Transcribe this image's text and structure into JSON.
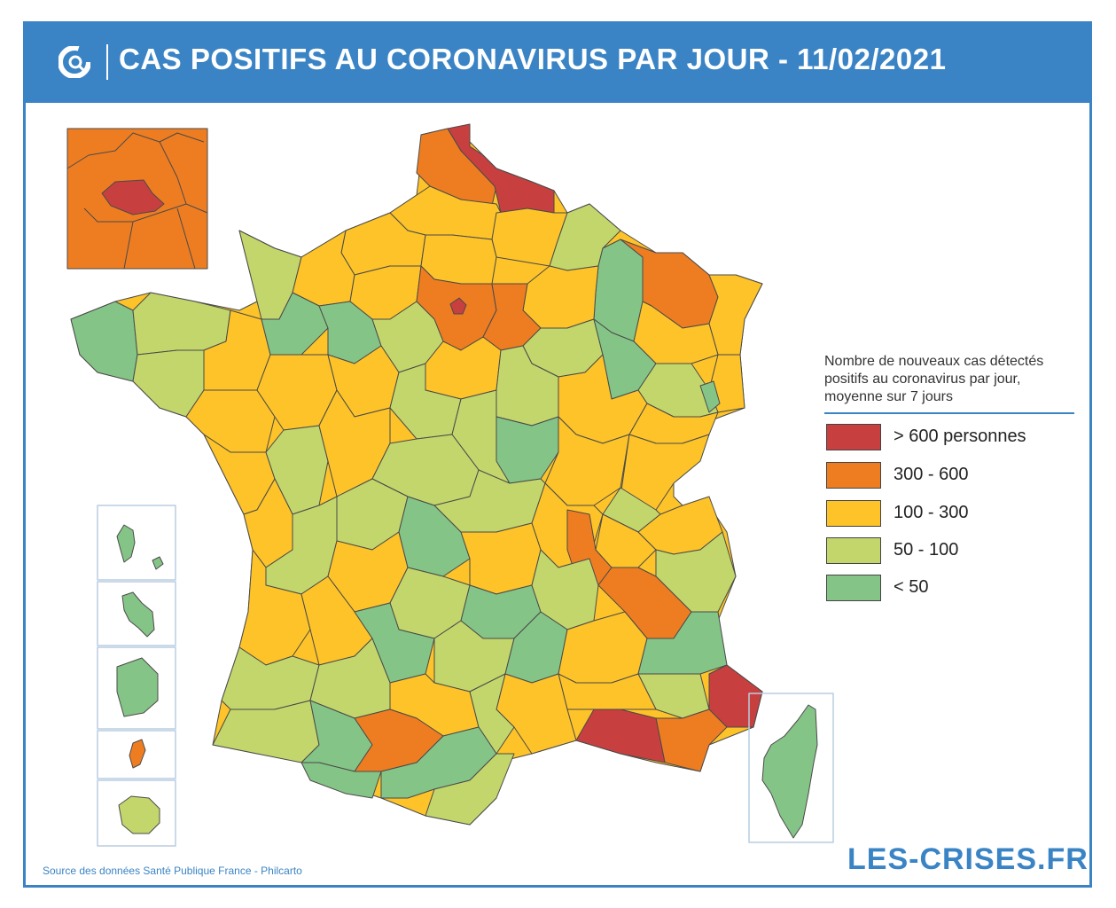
{
  "header": {
    "title": "CAS POSITIFS AU CORONAVIRUS PAR JOUR - 11/02/2021",
    "logo_icon": "les-crises-logo-icon"
  },
  "legend": {
    "title": "Nombre de nouveaux cas détectés positifs au coronavirus par jour, moyenne sur 7 jours",
    "items": [
      {
        "label": "> 600 personnes",
        "color": "#c7403f"
      },
      {
        "label": "300 - 600",
        "color": "#ee7d22"
      },
      {
        "label": "100 - 300",
        "color": "#fdc328"
      },
      {
        "label": "50 - 100",
        "color": "#c3d66c"
      },
      {
        "label": "< 50",
        "color": "#85c487"
      }
    ]
  },
  "colors": {
    "frame": "#3a84c5",
    "border": "#4a4a4a"
  },
  "footer": {
    "source": "Source des données Santé Publique France - Philcarto",
    "brand": "LES-CRISES.FR"
  }
}
